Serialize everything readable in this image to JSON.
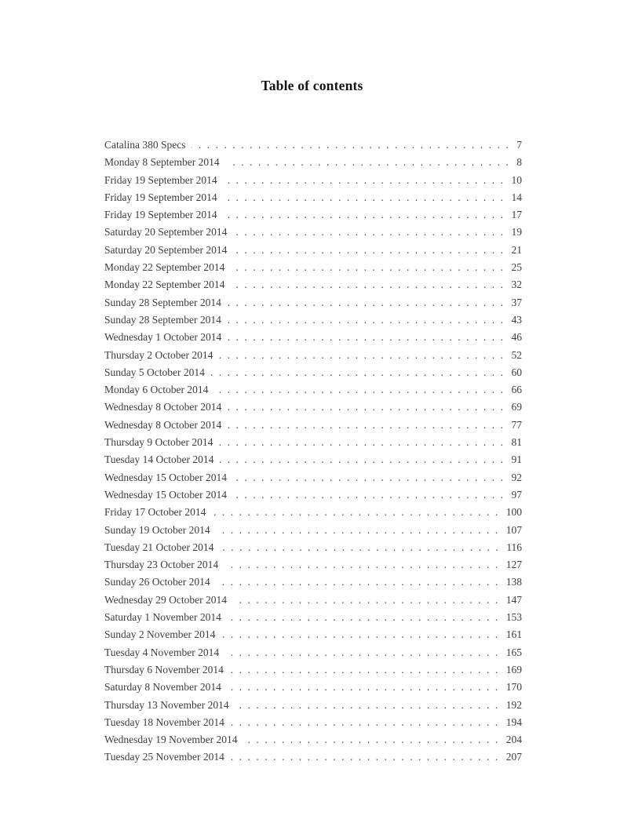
{
  "page": {
    "title": "Table of contents"
  },
  "toc": {
    "entries": [
      {
        "label": "Catalina 380 Specs",
        "page": "7"
      },
      {
        "label": "Monday 8 September 2014",
        "page": "8"
      },
      {
        "label": "Friday 19 September 2014",
        "page": "10"
      },
      {
        "label": "Friday 19 September 2014",
        "page": "14"
      },
      {
        "label": "Friday 19 September 2014",
        "page": "17"
      },
      {
        "label": "Saturday 20 September 2014",
        "page": "19"
      },
      {
        "label": "Saturday 20 September 2014",
        "page": "21"
      },
      {
        "label": "Monday 22 September 2014",
        "page": "25"
      },
      {
        "label": "Monday 22 September 2014",
        "page": "32"
      },
      {
        "label": "Sunday 28 September 2014",
        "page": "37"
      },
      {
        "label": "Sunday 28 September 2014",
        "page": "43"
      },
      {
        "label": "Wednesday 1 October 2014",
        "page": "46"
      },
      {
        "label": "Thursday 2 October 2014",
        "page": "52"
      },
      {
        "label": "Sunday 5 October 2014",
        "page": "60"
      },
      {
        "label": "Monday 6 October 2014",
        "page": "66"
      },
      {
        "label": "Wednesday 8 October 2014",
        "page": "69"
      },
      {
        "label": "Wednesday 8 October 2014",
        "page": "77"
      },
      {
        "label": "Thursday 9 October 2014",
        "page": "81"
      },
      {
        "label": "Tuesday 14 October 2014",
        "page": "91"
      },
      {
        "label": "Wednesday 15 October 2014",
        "page": "92"
      },
      {
        "label": "Wednesday 15 October 2014",
        "page": "97"
      },
      {
        "label": "Friday 17 October 2014",
        "page": "100"
      },
      {
        "label": "Sunday 19 October 2014",
        "page": "107"
      },
      {
        "label": "Tuesday 21 October 2014",
        "page": "116"
      },
      {
        "label": "Thursday 23 October 2014",
        "page": "127"
      },
      {
        "label": "Sunday 26 October 2014",
        "page": "138"
      },
      {
        "label": "Wednesday 29 October 2014",
        "page": "147"
      },
      {
        "label": "Saturday 1 November 2014",
        "page": "153"
      },
      {
        "label": "Sunday 2 November 2014",
        "page": "161"
      },
      {
        "label": "Tuesday 4 November 2014",
        "page": "165"
      },
      {
        "label": "Thursday 6 November 2014",
        "page": "169"
      },
      {
        "label": "Saturday 8 November 2014",
        "page": "170"
      },
      {
        "label": "Thursday 13 November 2014",
        "page": "192"
      },
      {
        "label": "Tuesday 18 November 2014",
        "page": "194"
      },
      {
        "label": "Wednesday 19 November 2014",
        "page": "204"
      },
      {
        "label": "Tuesday 25 November 2014",
        "page": "207"
      }
    ]
  }
}
